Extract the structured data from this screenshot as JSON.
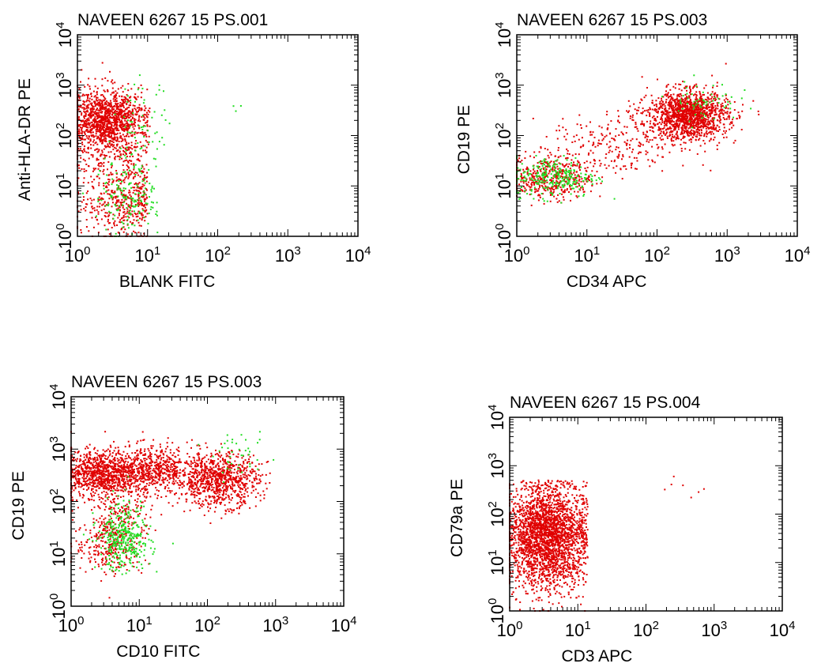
{
  "colors": {
    "red": "#e00000",
    "green": "#22dd22",
    "axis": "#000000"
  },
  "chart_data": [
    {
      "type": "scatter",
      "title": "NAVEEN 6267 15 PS.001",
      "xlabel": "BLANK FITC",
      "ylabel": "Anti-HLA-DR PE",
      "xscale": "log",
      "yscale": "log",
      "xlim": [
        1,
        10000
      ],
      "ylim": [
        1,
        10000
      ],
      "tick_labels": [
        "10^0",
        "10^1",
        "10^2",
        "10^3",
        "10^4"
      ],
      "series": [
        {
          "color": "red",
          "clusters": [
            {
              "cx": 2.6,
              "cy": 200,
              "sx": 0.28,
              "sy": 0.3,
              "n": 1300,
              "xmin": 1,
              "xmax": 11
            },
            {
              "cx": 4.5,
              "cy": 4,
              "sx": 0.3,
              "sy": 0.35,
              "n": 350,
              "xmin": 1,
              "xmax": 10
            },
            {
              "cx": 3.5,
              "cy": 30,
              "sx": 0.3,
              "sy": 0.45,
              "n": 250,
              "xmin": 1,
              "xmax": 10
            }
          ]
        },
        {
          "color": "green",
          "clusters": [
            {
              "cx": 5.5,
              "cy": 6,
              "sx": 0.25,
              "sy": 0.35,
              "n": 160,
              "xmin": 1,
              "xmax": 14
            },
            {
              "cx": 8,
              "cy": 120,
              "sx": 0.2,
              "sy": 0.45,
              "n": 70,
              "xmin": 1,
              "xmax": 25
            },
            {
              "cx": 150,
              "cy": 350,
              "sx": 0.15,
              "sy": 0.04,
              "n": 3
            }
          ]
        }
      ]
    },
    {
      "type": "scatter",
      "title": "NAVEEN 6267 15 PS.003",
      "xlabel": "CD34 APC",
      "ylabel": "CD19 PE",
      "xscale": "log",
      "yscale": "log",
      "xlim": [
        1,
        10000
      ],
      "ylim": [
        1,
        10000
      ],
      "tick_labels": [
        "10^0",
        "10^1",
        "10^2",
        "10^3",
        "10^4"
      ],
      "series": [
        {
          "color": "red",
          "clusters": [
            {
              "cx": 280,
              "cy": 250,
              "sx": 0.28,
              "sy": 0.24,
              "n": 1400
            },
            {
              "cx": 3,
              "cy": 15,
              "sx": 0.3,
              "sy": 0.22,
              "n": 450,
              "xmin": 1
            },
            {
              "cx": 25,
              "cy": 60,
              "sx": 0.45,
              "sy": 0.35,
              "n": 250,
              "xmin": 1
            }
          ]
        },
        {
          "color": "green",
          "clusters": [
            {
              "cx": 3.5,
              "cy": 15,
              "sx": 0.3,
              "sy": 0.2,
              "n": 260,
              "xmin": 1
            },
            {
              "cx": 450,
              "cy": 500,
              "sx": 0.25,
              "sy": 0.2,
              "n": 60
            }
          ]
        }
      ]
    },
    {
      "type": "scatter",
      "title": "NAVEEN 6267 15 PS.003",
      "xlabel": "CD10 FITC",
      "ylabel": "CD19 PE",
      "xscale": "log",
      "yscale": "log",
      "xlim": [
        1,
        10000
      ],
      "ylim": [
        1,
        10000
      ],
      "tick_labels": [
        "10^0",
        "10^1",
        "10^2",
        "10^3",
        "10^4"
      ],
      "series": [
        {
          "color": "red",
          "clusters": [
            {
              "cx": 2.5,
              "cy": 350,
              "sx": 0.28,
              "sy": 0.22,
              "n": 900,
              "xmin": 1
            },
            {
              "cx": 15,
              "cy": 400,
              "sx": 0.3,
              "sy": 0.22,
              "n": 600,
              "xmin": 1
            },
            {
              "cx": 140,
              "cy": 260,
              "sx": 0.3,
              "sy": 0.25,
              "n": 900
            },
            {
              "cx": 3.5,
              "cy": 15,
              "sx": 0.25,
              "sy": 0.3,
              "n": 250,
              "xmin": 1
            },
            {
              "cx": 6,
              "cy": 60,
              "sx": 0.2,
              "sy": 0.4,
              "n": 220,
              "xmin": 1
            }
          ]
        },
        {
          "color": "green",
          "clusters": [
            {
              "cx": 6,
              "cy": 15,
              "sx": 0.2,
              "sy": 0.25,
              "n": 280,
              "xmin": 1
            },
            {
              "cx": 6,
              "cy": 50,
              "sx": 0.15,
              "sy": 0.3,
              "n": 80,
              "xmin": 1
            },
            {
              "cx": 300,
              "cy": 700,
              "sx": 0.2,
              "sy": 0.2,
              "n": 40
            }
          ]
        }
      ]
    },
    {
      "type": "scatter",
      "title": "NAVEEN 6267 15 PS.004",
      "xlabel": "CD3 APC",
      "ylabel": "CD79a PE",
      "xscale": "log",
      "yscale": "log",
      "xlim": [
        1,
        10000
      ],
      "ylim": [
        1,
        10000
      ],
      "tick_labels": [
        "10^0",
        "10^1",
        "10^2",
        "10^3",
        "10^4"
      ],
      "series": [
        {
          "color": "red",
          "clusters": [
            {
              "cx": 3.5,
              "cy": 35,
              "sx": 0.3,
              "sy": 0.55,
              "n": 2600,
              "xmin": 1,
              "xmax": 14,
              "ymin": 1,
              "ymax": 500
            },
            {
              "cx": 400,
              "cy": 350,
              "sx": 0.15,
              "sy": 0.2,
              "n": 7
            }
          ]
        }
      ]
    }
  ]
}
